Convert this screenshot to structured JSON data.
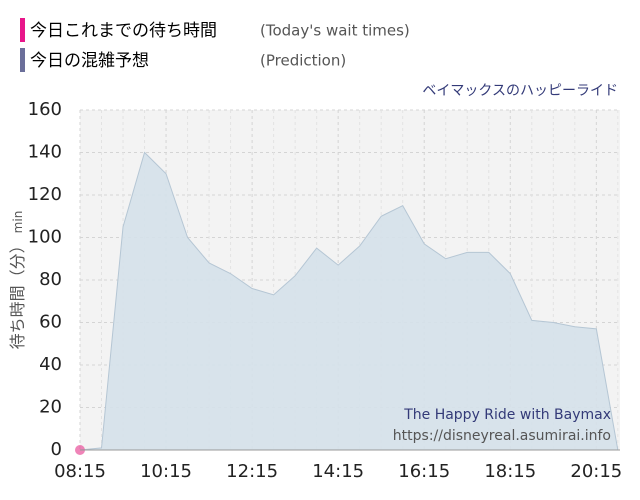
{
  "chart_data": {
    "type": "area",
    "subtitle": "ベイマックスのハッピーライド",
    "y_label": "待ち時間（分）",
    "y_unit": "min",
    "watermark": [
      "The Happy Ride with Baymax",
      "https://disneyreal.asumirai.info"
    ],
    "series": [
      {
        "name": "今日これまでの待ち時間",
        "name_en": "(Today's wait times)",
        "color": "#e8509a",
        "kind": "point",
        "x": [
          495
        ],
        "values": [
          0
        ]
      },
      {
        "name": "今日の混雑予想",
        "name_en": "(Prediction)",
        "color": "#7f8cad",
        "kind": "area",
        "x": [
          495,
          525,
          555,
          585,
          615,
          645,
          675,
          705,
          735,
          765,
          795,
          825,
          855,
          885,
          915,
          945,
          975,
          1005,
          1035,
          1065,
          1095,
          1125,
          1155,
          1185,
          1215,
          1245
        ],
        "values": [
          0,
          1,
          105,
          140,
          130,
          100,
          88,
          83,
          76,
          73,
          82,
          95,
          87,
          96,
          110,
          115,
          97,
          90,
          93,
          93,
          83,
          61,
          60,
          58,
          57,
          0
        ]
      }
    ],
    "xlim": [
      495,
      1248
    ],
    "xticks": [
      {
        "value": 495,
        "label": "08:15"
      },
      {
        "value": 615,
        "label": "10:15"
      },
      {
        "value": 735,
        "label": "12:15"
      },
      {
        "value": 855,
        "label": "14:15"
      },
      {
        "value": 975,
        "label": "16:15"
      },
      {
        "value": 1095,
        "label": "18:15"
      },
      {
        "value": 1215,
        "label": "20:15"
      }
    ],
    "ylim": [
      0,
      160
    ],
    "yticks": [
      0,
      20,
      40,
      60,
      80,
      100,
      120,
      140,
      160
    ],
    "grid": true
  }
}
